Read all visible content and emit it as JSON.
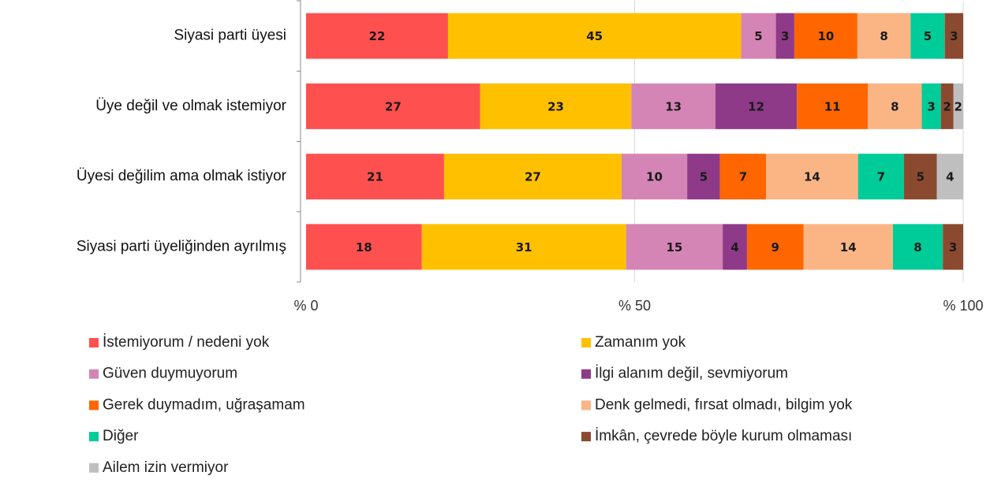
{
  "chart_data": {
    "type": "stacked-barh",
    "categories": [
      "Siyasi parti üyesi",
      "Üye değil ve olmak istemiyor",
      "Üyesi değilim ama olmak istiyor",
      "Siyasi parti üyeliğinden ayrılmış"
    ],
    "xlim": [
      0,
      100
    ],
    "xticks": [
      {
        "value": 0,
        "label": "% 0"
      },
      {
        "value": 50,
        "label": "% 50"
      },
      {
        "value": 100,
        "label": "% 100"
      }
    ],
    "grid": true,
    "legend": "bottom",
    "series": [
      {
        "name": "İstemiyorum / nedeni yok",
        "color": "#ff5050",
        "values": [
          21.6,
          26.5,
          21,
          17.6
        ],
        "value_labels": [
          "22",
          "27",
          "21",
          "18"
        ]
      },
      {
        "name": "Zamanım yok",
        "color": "#ffc000",
        "values": [
          44.6,
          23.0,
          27,
          31.1
        ],
        "value_labels": [
          "45",
          "23",
          "27",
          "31"
        ]
      },
      {
        "name": "Güven duymuyorum",
        "color": "#d585b5",
        "values": [
          5.3,
          12.8,
          10,
          14.7
        ],
        "value_labels": [
          "5",
          "13",
          "10",
          "15"
        ]
      },
      {
        "name": "İlgi alanım değil, sevmiyorum",
        "color": "#8e3a88",
        "values": [
          2.8,
          12.4,
          5,
          3.7
        ],
        "value_labels": [
          "3",
          "12",
          "5",
          "4"
        ]
      },
      {
        "name": "Gerek duymadım, uğraşamam",
        "color": "#ff6600",
        "values": [
          9.6,
          10.8,
          7,
          8.6
        ],
        "value_labels": [
          "10",
          "11",
          "7",
          "9"
        ]
      },
      {
        "name": "Denk gelmedi, fırsat olmadı, bilgim yok",
        "color": "#fbb584",
        "values": [
          8.1,
          8.2,
          14,
          13.6
        ],
        "value_labels": [
          "8",
          "8",
          "14",
          "14"
        ]
      },
      {
        "name": "Diğer",
        "color": "#00cc99",
        "values": [
          5.2,
          2.9,
          7,
          7.6
        ],
        "value_labels": [
          "5",
          "3",
          "7",
          "8"
        ]
      },
      {
        "name": "İmkân, çevrede böyle kurum olmaması",
        "color": "#8b4a2f",
        "values": [
          2.8,
          1.9,
          5,
          3.1
        ],
        "value_labels": [
          "3",
          "2",
          "5",
          "3"
        ]
      },
      {
        "name": "Ailem izin vermiyor",
        "color": "#bfbfbf",
        "values": [
          null,
          1.5,
          4,
          null
        ],
        "value_labels": [
          null,
          "2",
          "4",
          null
        ]
      }
    ]
  }
}
